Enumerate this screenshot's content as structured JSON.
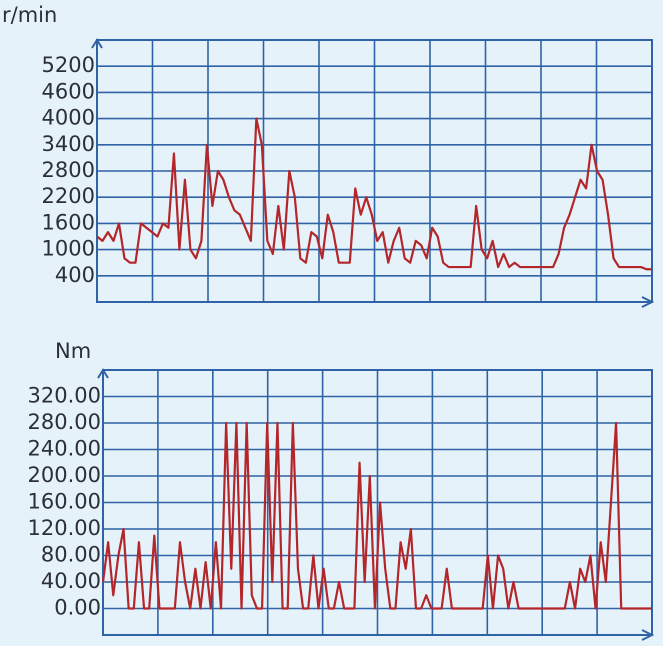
{
  "chart_data": [
    {
      "type": "line",
      "ylabel": "r/min",
      "color": "#b3262a",
      "grid": true,
      "ylim": [
        -200,
        5800
      ],
      "yticks": [
        400,
        1000,
        1600,
        2200,
        2800,
        3400,
        4000,
        4600,
        5200
      ],
      "values": [
        1300,
        1200,
        1400,
        1200,
        1600,
        800,
        700,
        700,
        1600,
        1500,
        1400,
        1300,
        1600,
        1500,
        3200,
        1000,
        2600,
        1000,
        800,
        1200,
        3400,
        2000,
        2800,
        2600,
        2200,
        1900,
        1800,
        1500,
        1200,
        4000,
        3400,
        1200,
        900,
        2000,
        1000,
        2800,
        2200,
        800,
        700,
        1400,
        1300,
        800,
        1800,
        1400,
        700,
        700,
        700,
        2400,
        1800,
        2200,
        1800,
        1200,
        1400,
        700,
        1200,
        1500,
        800,
        700,
        1200,
        1100,
        800,
        1500,
        1300,
        700,
        600,
        600,
        600,
        600,
        600,
        2000,
        1000,
        800,
        1200,
        600,
        900,
        600,
        700,
        600,
        600,
        600,
        600,
        600,
        600,
        600,
        900,
        1500,
        1800,
        2200,
        2600,
        2400,
        3400,
        2800,
        2600,
        1800,
        800,
        600,
        600,
        600,
        600,
        600,
        550,
        550
      ]
    },
    {
      "type": "line",
      "ylabel": "Nm",
      "color": "#b3262a",
      "grid": true,
      "ylim": [
        -40,
        360
      ],
      "yticks": [
        {
          "value": 0,
          "label": "0.00"
        },
        {
          "value": 40,
          "label": "40.00"
        },
        {
          "value": 80,
          "label": "80.00"
        },
        {
          "value": 120,
          "label": "120.00"
        },
        {
          "value": 160,
          "label": "160.00"
        },
        {
          "value": 200,
          "label": "200.00"
        },
        {
          "value": 240,
          "label": "240.00"
        },
        {
          "value": 280,
          "label": "280.00"
        },
        {
          "value": 320,
          "label": "320.00"
        }
      ],
      "values": [
        40,
        100,
        20,
        80,
        120,
        0,
        0,
        100,
        0,
        0,
        110,
        0,
        0,
        0,
        0,
        100,
        40,
        0,
        60,
        0,
        70,
        0,
        100,
        0,
        280,
        60,
        280,
        0,
        280,
        20,
        0,
        0,
        280,
        40,
        280,
        0,
        0,
        280,
        60,
        0,
        0,
        80,
        0,
        60,
        0,
        0,
        40,
        0,
        0,
        0,
        220,
        40,
        200,
        0,
        160,
        60,
        0,
        0,
        100,
        60,
        120,
        0,
        0,
        20,
        0,
        0,
        0,
        60,
        0,
        0,
        0,
        0,
        0,
        0,
        0,
        80,
        0,
        80,
        60,
        0,
        40,
        0,
        0,
        0,
        0,
        0,
        0,
        0,
        0,
        0,
        0,
        40,
        0,
        60,
        40,
        80,
        0,
        100,
        40,
        160,
        280,
        0,
        0,
        0,
        0,
        0,
        0,
        0
      ]
    }
  ]
}
